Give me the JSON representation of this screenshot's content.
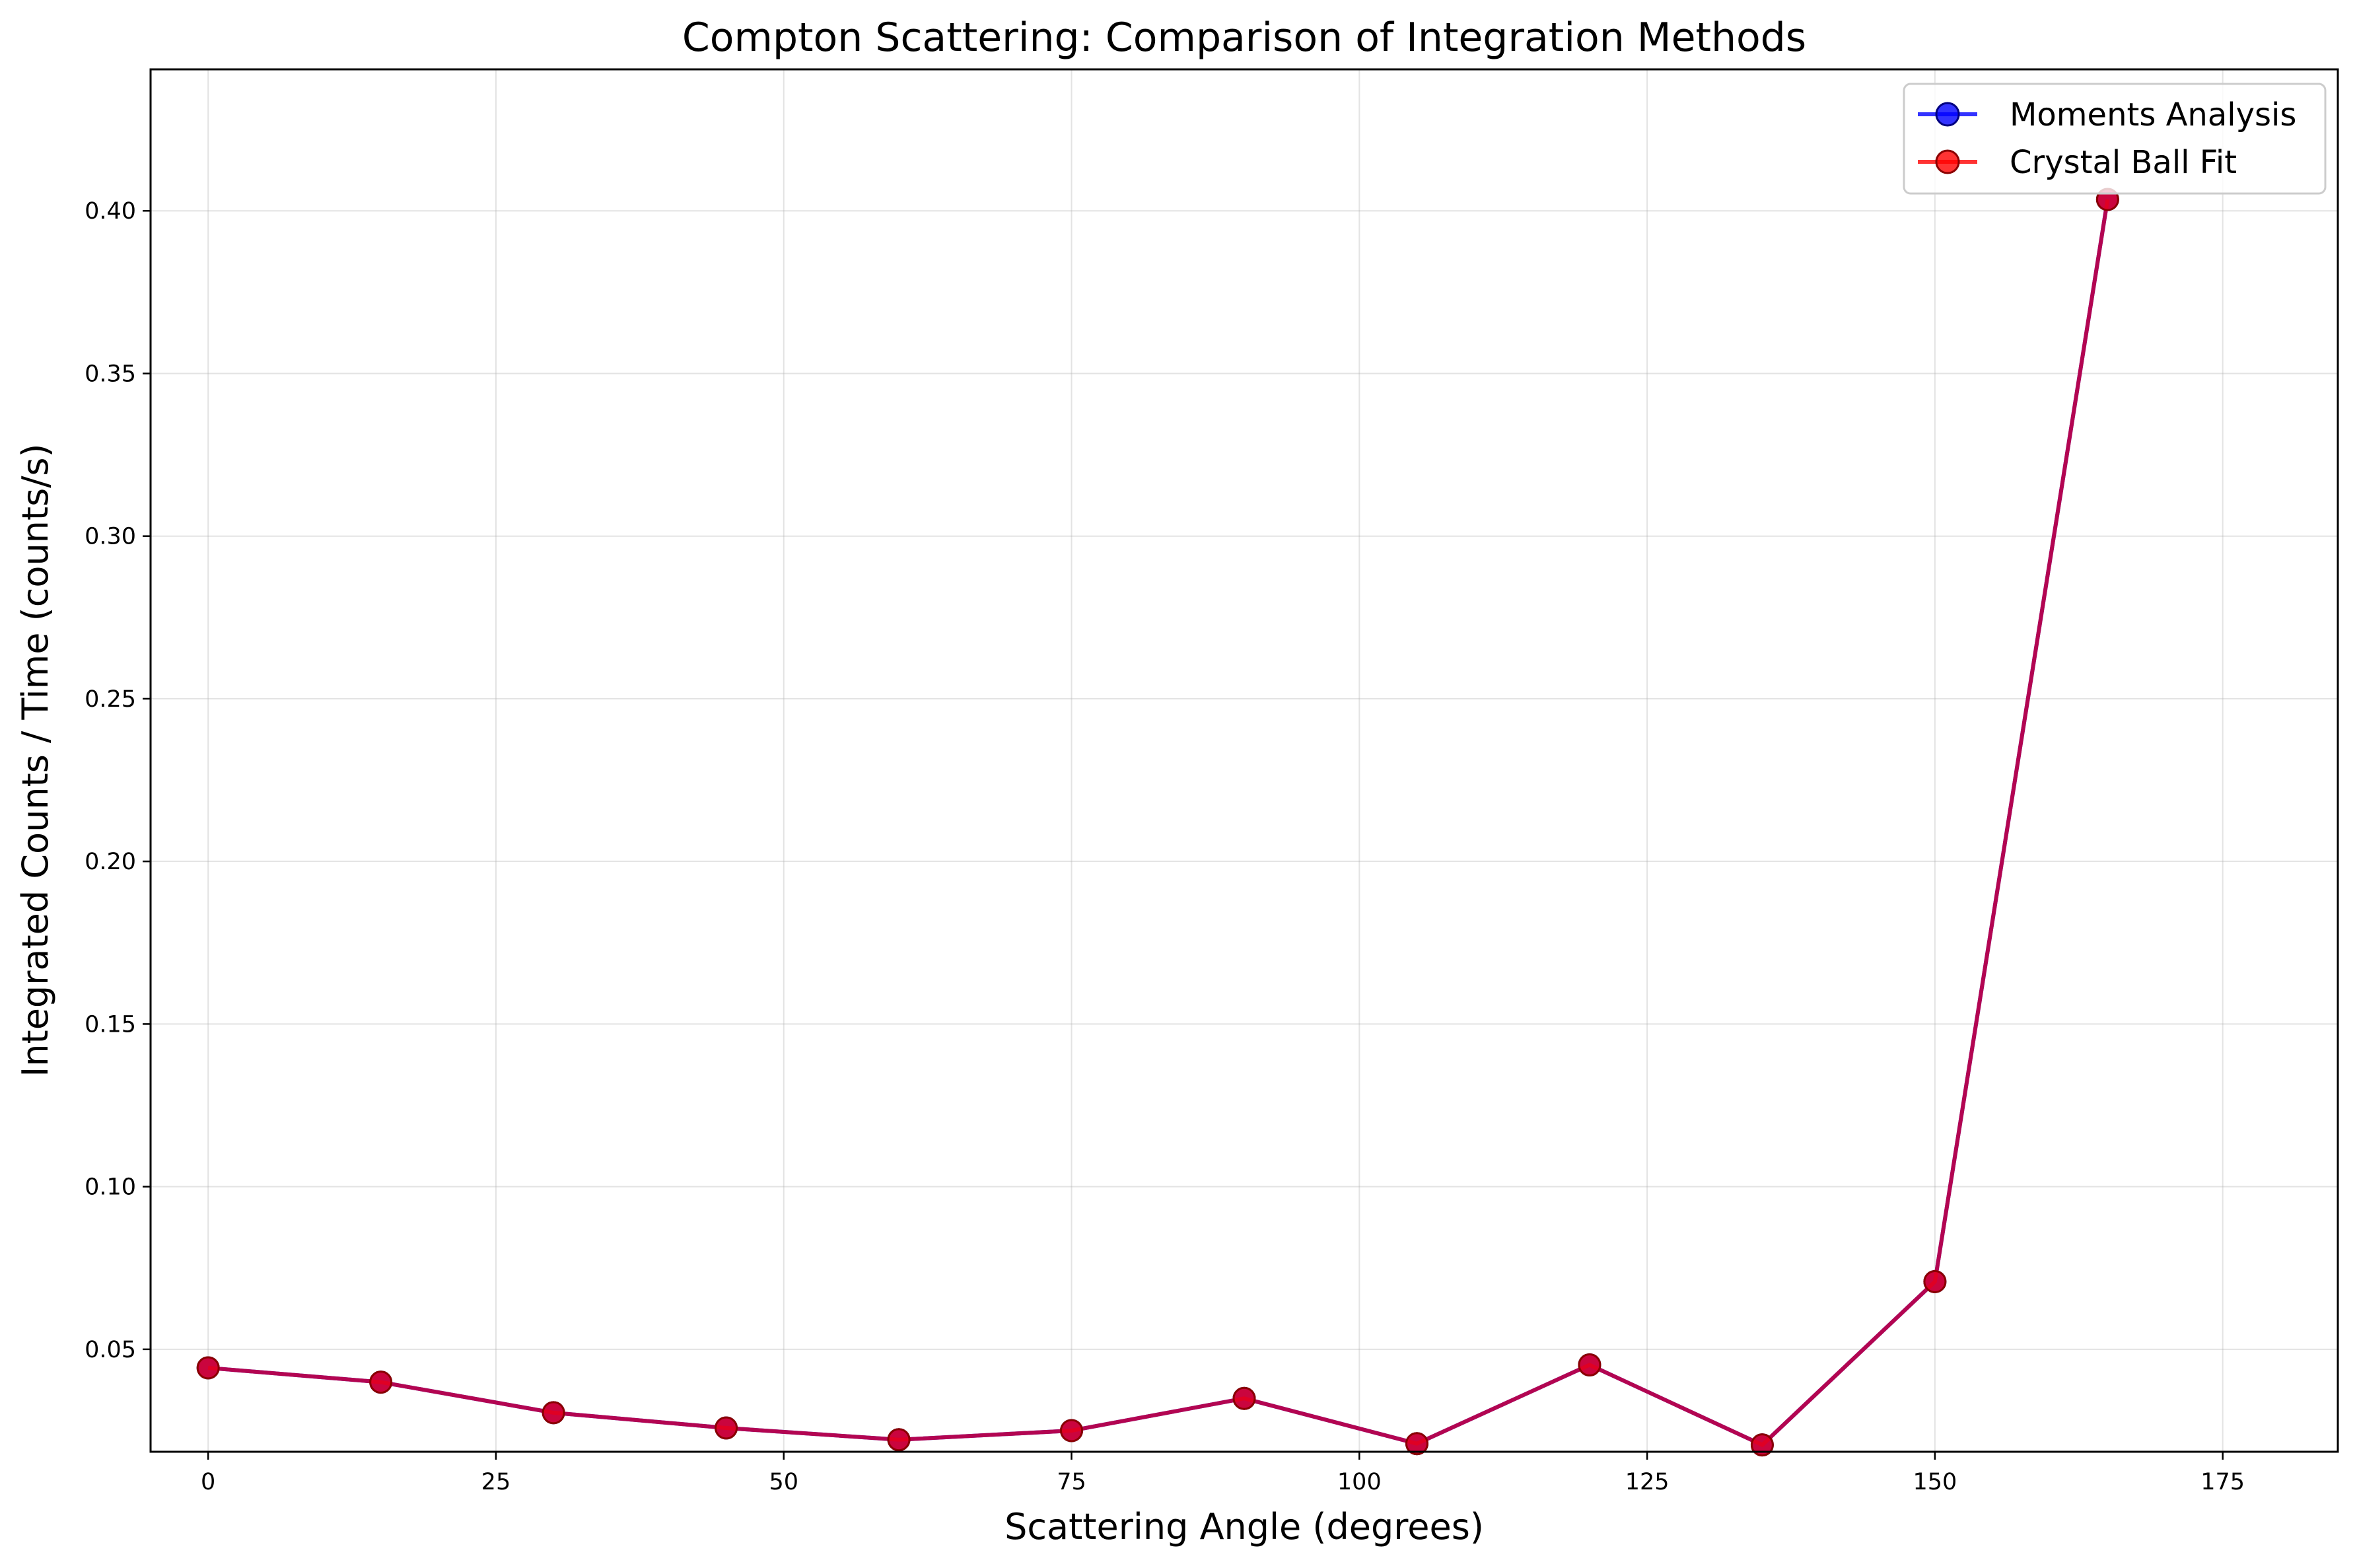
{
  "chart_data": {
    "type": "line",
    "title": "Compton Scattering: Comparison of Integration Methods",
    "xlabel": "Scattering Angle (degrees)",
    "ylabel": "Integrated Counts / Time (counts/s)",
    "xlim": [
      -5,
      185
    ],
    "ylim": [
      0.0185,
      0.4435
    ],
    "xticks": [
      0,
      25,
      50,
      75,
      100,
      125,
      150,
      175
    ],
    "xtick_labels": [
      "0",
      "25",
      "50",
      "75",
      "100",
      "125",
      "150",
      "175"
    ],
    "yticks": [
      0.05,
      0.1,
      0.15,
      0.2,
      0.25,
      0.3,
      0.35,
      0.4
    ],
    "ytick_labels": [
      "0.05",
      "0.10",
      "0.15",
      "0.20",
      "0.25",
      "0.30",
      "0.35",
      "0.40"
    ],
    "grid": true,
    "legend_position": "top-right",
    "x": [
      0,
      15,
      30,
      45,
      60,
      75,
      90,
      105,
      120,
      135,
      150,
      165
    ],
    "series": [
      {
        "name": "Moments Analysis",
        "color": "#0000ff",
        "values": [
          0.0443,
          0.0399,
          0.0305,
          0.0258,
          0.0222,
          0.025,
          0.0349,
          0.021,
          0.0452,
          0.0206,
          0.0708,
          0.4035
        ]
      },
      {
        "name": "Crystal Ball Fit",
        "color": "#ff0000",
        "values": [
          0.0443,
          0.0399,
          0.0305,
          0.0258,
          0.0222,
          0.025,
          0.0349,
          0.021,
          0.0452,
          0.0206,
          0.0708,
          0.4035
        ]
      }
    ],
    "marker_edge_color": "#8b0000",
    "combined_line_color": "#cc0033"
  }
}
